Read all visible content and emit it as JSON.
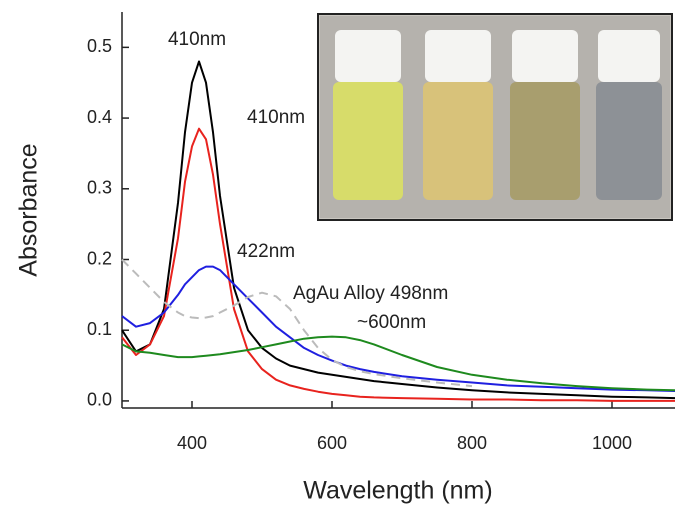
{
  "chart_data": {
    "type": "line",
    "xlabel": "Wavelength (nm)",
    "ylabel": "Absorbance",
    "x": [
      300,
      320,
      340,
      360,
      380,
      390,
      400,
      410,
      420,
      430,
      440,
      460,
      480,
      500,
      520,
      540,
      560,
      580,
      600,
      620,
      640,
      660,
      700,
      750,
      800,
      850,
      900,
      950,
      1000,
      1050,
      1090
    ],
    "series": [
      {
        "color": "#000000",
        "dash": false,
        "values": [
          0.1,
          0.07,
          0.08,
          0.13,
          0.28,
          0.38,
          0.45,
          0.48,
          0.45,
          0.38,
          0.29,
          0.16,
          0.1,
          0.075,
          0.06,
          0.05,
          0.045,
          0.04,
          0.037,
          0.034,
          0.031,
          0.028,
          0.024,
          0.019,
          0.015,
          0.012,
          0.01,
          0.008,
          0.006,
          0.005,
          0.004
        ]
      },
      {
        "color": "#e8231e",
        "dash": false,
        "values": [
          0.09,
          0.065,
          0.08,
          0.12,
          0.23,
          0.31,
          0.36,
          0.385,
          0.37,
          0.32,
          0.25,
          0.13,
          0.07,
          0.045,
          0.03,
          0.022,
          0.017,
          0.013,
          0.01,
          0.008,
          0.006,
          0.005,
          0.004,
          0.003,
          0.002,
          0.002,
          0.001,
          0.001,
          0,
          0,
          0
        ]
      },
      {
        "color": "#1f1fe0",
        "dash": false,
        "values": [
          0.12,
          0.105,
          0.11,
          0.125,
          0.15,
          0.165,
          0.175,
          0.185,
          0.19,
          0.19,
          0.185,
          0.165,
          0.145,
          0.125,
          0.105,
          0.09,
          0.075,
          0.065,
          0.057,
          0.05,
          0.045,
          0.041,
          0.035,
          0.03,
          0.026,
          0.022,
          0.02,
          0.018,
          0.016,
          0.015,
          0.014
        ]
      },
      {
        "color": "#1e8a1e",
        "dash": false,
        "values": [
          0.08,
          0.07,
          0.068,
          0.065,
          0.062,
          0.062,
          0.062,
          0.063,
          0.064,
          0.065,
          0.066,
          0.069,
          0.072,
          0.076,
          0.08,
          0.084,
          0.088,
          0.09,
          0.091,
          0.09,
          0.086,
          0.08,
          0.065,
          0.048,
          0.037,
          0.03,
          0.025,
          0.021,
          0.018,
          0.016,
          0.015
        ]
      },
      {
        "color": "#bbbbbb",
        "dash": true,
        "values": [
          0.2,
          0.18,
          0.16,
          0.14,
          0.125,
          0.12,
          0.118,
          0.117,
          0.118,
          0.12,
          0.125,
          0.135,
          0.147,
          0.153,
          0.148,
          0.13,
          0.1,
          0.075,
          0.058,
          0.048,
          0.042,
          0.038,
          0.032,
          0.026,
          0.021,
          null,
          null,
          null,
          null,
          null,
          null
        ]
      }
    ],
    "annotations": [
      "410nm",
      "410nm",
      "422nm",
      "AgAu Alloy 498nm",
      "~600nm"
    ],
    "xlim": [
      300,
      1090
    ],
    "ylim": [
      -0.01,
      0.55
    ],
    "xticks": [
      400,
      600,
      800,
      1000
    ],
    "yticks": [
      {
        "value": 0,
        "label": "0.0"
      },
      0.1,
      0.2,
      0.3,
      0.4,
      0.5
    ]
  }
}
